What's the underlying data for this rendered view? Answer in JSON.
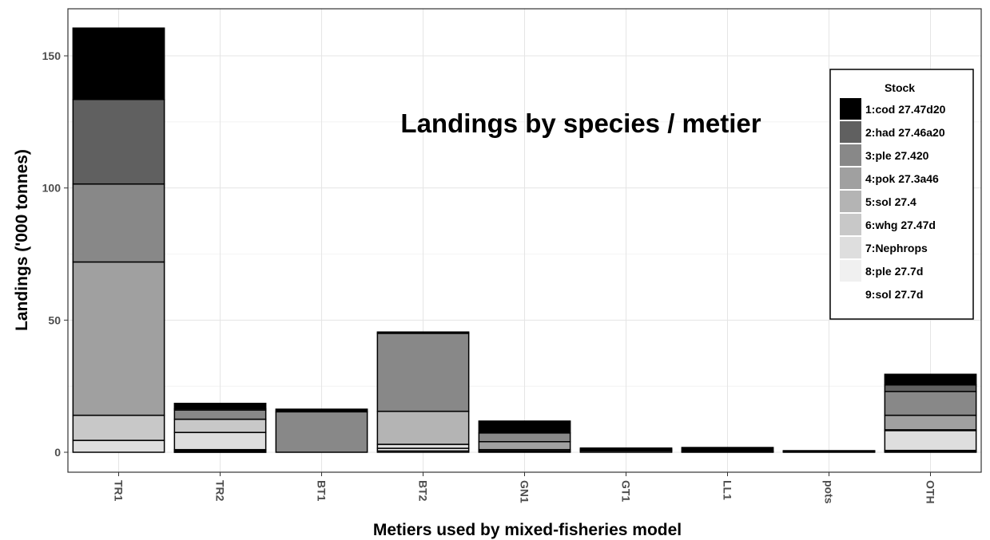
{
  "chart_data": {
    "type": "bar",
    "stacked": true,
    "title": "Landings by species / metier",
    "xlabel": "Metiers used by mixed-fisheries model",
    "ylabel": "Landings ('000 tonnes)",
    "ylim": [
      -4,
      164
    ],
    "yticks": [
      0,
      50,
      100,
      150
    ],
    "grid": true,
    "legend_position": "top-right",
    "legend_title": "Stock",
    "categories": [
      "TR1",
      "TR2",
      "BT1",
      "BT2",
      "GN1",
      "GT1",
      "LL1",
      "pots",
      "OTH"
    ],
    "series": [
      {
        "name": "9:sol 27.7d",
        "color": "#FFFFFF",
        "values": [
          0,
          0,
          0,
          0.5,
          0,
          0.5,
          0,
          0.2,
          0.3
        ]
      },
      {
        "name": "8:ple 27.7d",
        "color": "#F0F0F0",
        "values": [
          0,
          0,
          0,
          1.0,
          0,
          0.2,
          0,
          0.1,
          0.4
        ]
      },
      {
        "name": "7:Nephrops",
        "color": "#DEDEDE",
        "values": [
          4.5,
          7.5,
          0,
          1.5,
          0.2,
          0.4,
          0.3,
          0.2,
          7.5
        ]
      },
      {
        "name": "6:whg 27.47d",
        "color": "#C8C8C8",
        "values": [
          9.5,
          5.0,
          0,
          0,
          0.3,
          0,
          0,
          0,
          0.3
        ]
      },
      {
        "name": "5:sol 27.4",
        "color": "#B4B4B4",
        "values": [
          0,
          0,
          0,
          12.5,
          0.5,
          0,
          0,
          0,
          0
        ]
      },
      {
        "name": "4:pok 27.3a46",
        "color": "#A0A0A0",
        "values": [
          58.0,
          0,
          0,
          0,
          3.0,
          0,
          0,
          0,
          5.5
        ]
      },
      {
        "name": "3:ple 27.420",
        "color": "#888888",
        "values": [
          29.5,
          3.5,
          15.3,
          29.5,
          3.3,
          0,
          0,
          0,
          9.0
        ]
      },
      {
        "name": "2:had 27.46a20",
        "color": "#606060",
        "values": [
          32.0,
          0.5,
          0,
          0,
          0,
          0,
          0,
          0,
          2.5
        ]
      },
      {
        "name": "1:cod 27.47d20",
        "color": "#000000",
        "values": [
          27.0,
          2.0,
          1.0,
          0.5,
          4.5,
          0.5,
          1.5,
          0.1,
          4.0
        ]
      }
    ],
    "overlays": [
      {
        "category": "TR2",
        "name": "1:cod 27.47d20",
        "value": 1.0,
        "color": "#000000"
      }
    ]
  }
}
